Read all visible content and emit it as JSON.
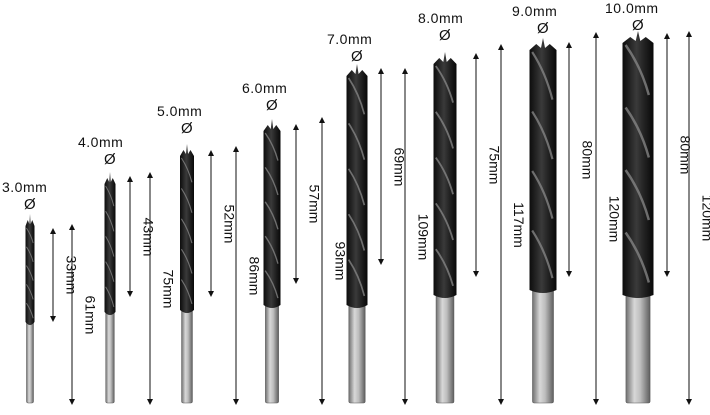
{
  "bits": [
    {
      "size": "3.0mm",
      "symbol": "Ø",
      "flute": "33mm",
      "total": "61mm"
    },
    {
      "size": "4.0mm",
      "symbol": "Ø",
      "flute": "43mm",
      "total": "75mm"
    },
    {
      "size": "5.0mm",
      "symbol": "Ø",
      "flute": "52mm",
      "total": "86mm"
    },
    {
      "size": "6.0mm",
      "symbol": "Ø",
      "flute": "57mm",
      "total": "93mm"
    },
    {
      "size": "7.0mm",
      "symbol": "Ø",
      "flute": "69mm",
      "total": "109mm"
    },
    {
      "size": "8.0mm",
      "symbol": "Ø",
      "flute": "75mm",
      "total": "117mm"
    },
    {
      "size": "9.0mm",
      "symbol": "Ø",
      "flute": "80mm",
      "total": "120mm"
    },
    {
      "size": "10.0mm",
      "symbol": "Ø",
      "flute": "80mm",
      "total": "120mm"
    }
  ],
  "colors": {
    "flute": "#1c1c1c",
    "shank": "#b9b9b9",
    "shank_dark": "#6f6f6f",
    "arrow": "#111111"
  }
}
